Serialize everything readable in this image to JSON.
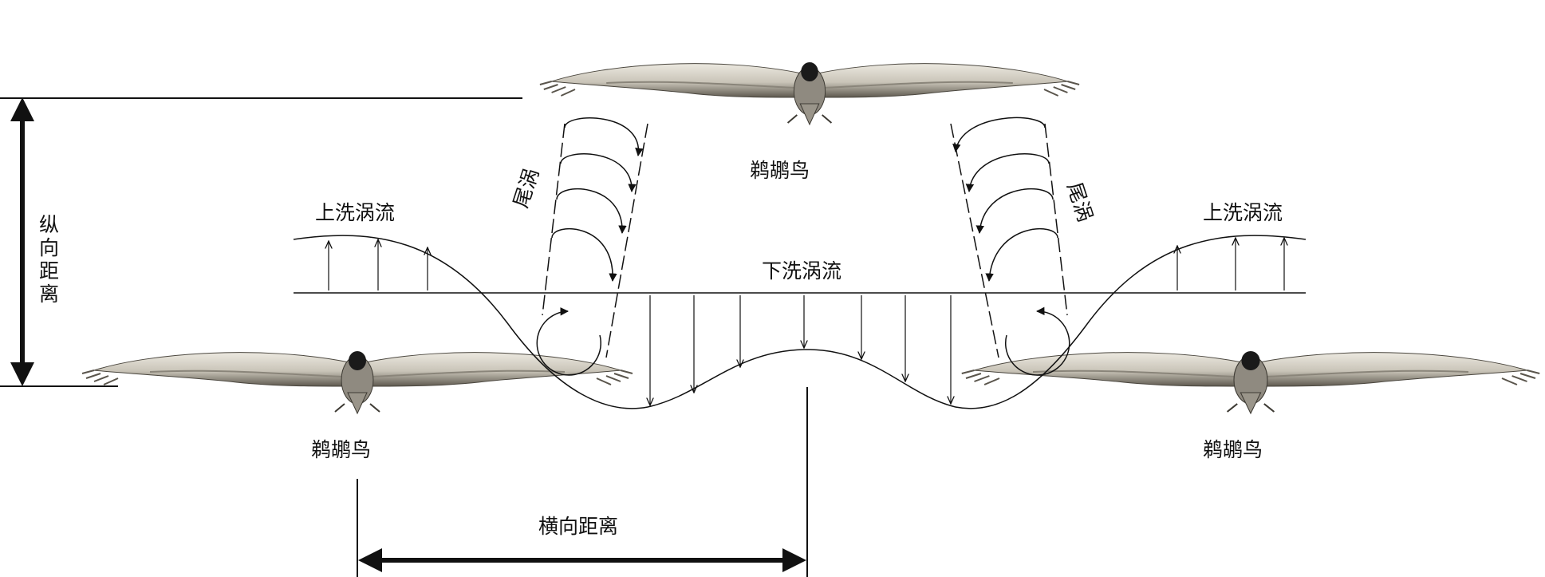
{
  "labels": {
    "top_bird": "鹈鹕鸟",
    "left_bird": "鹈鹕鸟",
    "right_bird": "鹈鹕鸟",
    "upwash_left": "上洗涡流",
    "upwash_right": "上洗涡流",
    "downwash": "下洗涡流",
    "wake_vortex_left": "尾涡",
    "wake_vortex_right": "尾涡",
    "longitudinal_distance": "纵向距离",
    "lateral_distance": "横向距离"
  },
  "colors": {
    "line": "#111111",
    "wing_light": "#d9d6cc",
    "wing_dark": "#6f6a60",
    "bird_head": "#1a1a1a"
  }
}
